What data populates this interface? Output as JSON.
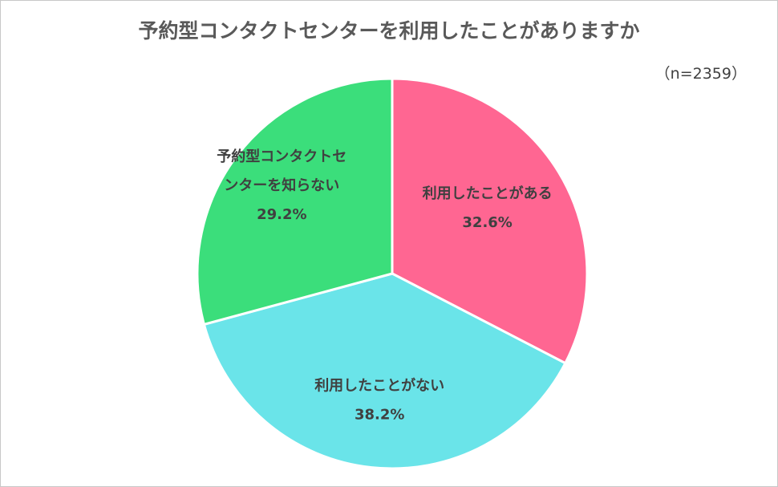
{
  "chart_data": {
    "type": "pie",
    "title": "予約型コンタクトセンターを利用したことがありますか",
    "note": "（n=2359）",
    "categories": [
      "利用したことがある",
      "利用したことがない",
      "予約型コンタクトセンターを知らない"
    ],
    "label_lines": [
      [
        "利用したことがある"
      ],
      [
        "利用したことがない"
      ],
      [
        "予約型コンタクトセ",
        "ンターを知らない"
      ]
    ],
    "values": [
      32.6,
      38.2,
      29.2
    ],
    "value_labels": [
      "32.6%",
      "38.2%",
      "29.2%"
    ],
    "colors": [
      "#FF6692",
      "#6AE4E9",
      "#3BDE7B"
    ]
  }
}
